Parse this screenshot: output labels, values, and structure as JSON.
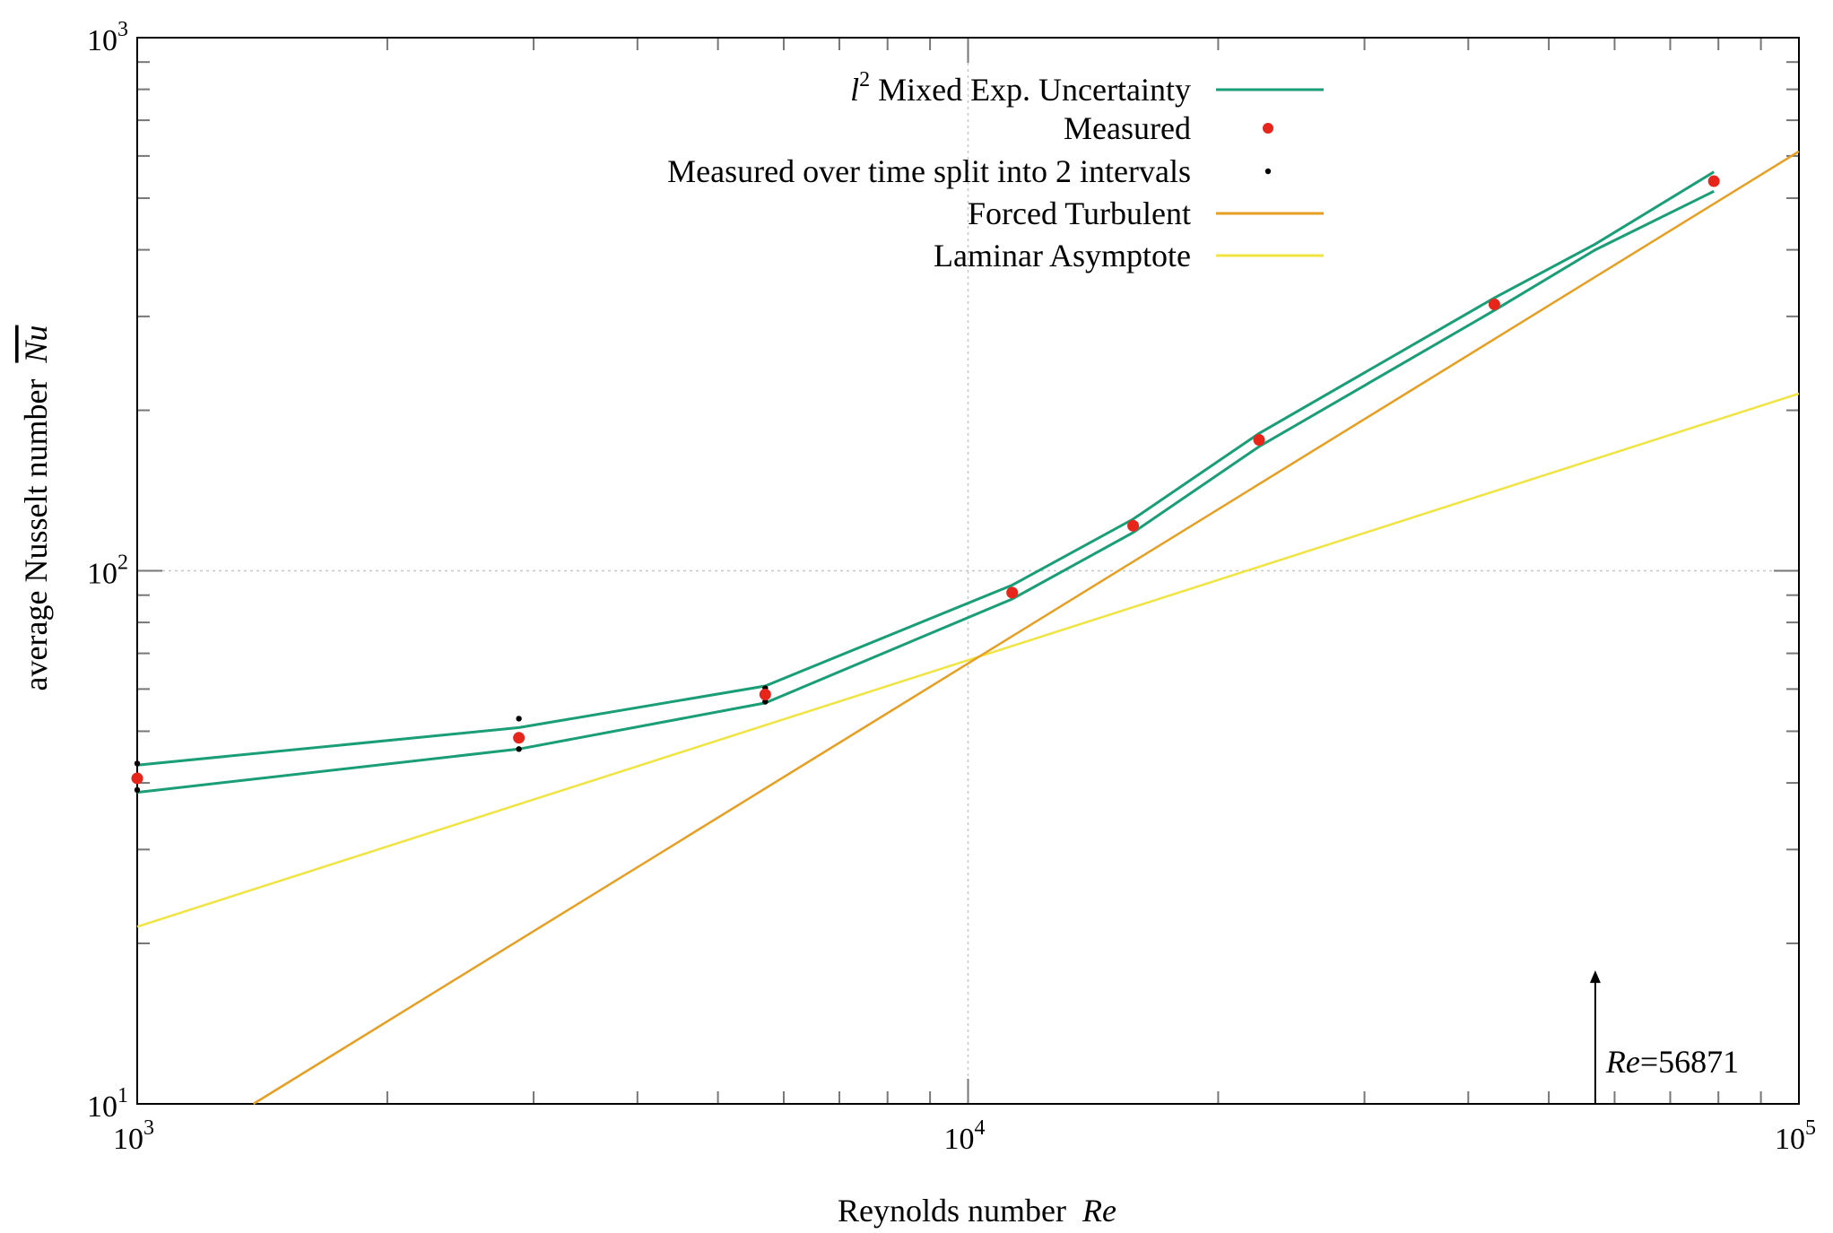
{
  "chart_data": {
    "type": "line",
    "xlabel": "Reynolds number",
    "xlabel_symbol": "Re",
    "ylabel": "average Nusselt number",
    "ylabel_symbol": "Nu",
    "xscale": "log",
    "yscale": "log",
    "xlim": [
      1000,
      100000
    ],
    "ylim": [
      10,
      1000
    ],
    "grid": "major only at 10^4 and 10^2 (dotted)",
    "legend_position": "top-center",
    "x_ticks": [
      {
        "value": 1000,
        "base": "10",
        "exp": "3"
      },
      {
        "value": 10000,
        "base": "10",
        "exp": "4"
      },
      {
        "value": 100000,
        "base": "10",
        "exp": "5"
      }
    ],
    "y_ticks": [
      {
        "value": 10,
        "base": "10",
        "exp": "1"
      },
      {
        "value": 100,
        "base": "10",
        "exp": "2"
      },
      {
        "value": 1000,
        "base": "10",
        "exp": "3"
      }
    ],
    "series": [
      {
        "name": "l² Mixed Exp. Uncertainty",
        "legend_prefix": "l",
        "legend_sup": "2",
        "legend_text": " Mixed Exp. Uncertainty",
        "kind": "band",
        "color": "#1a9e77",
        "upper": [
          [
            1000,
            43.2
          ],
          [
            2880,
            50.8
          ],
          [
            5700,
            60.8
          ],
          [
            11300,
            94
          ],
          [
            15800,
            125
          ],
          [
            22400,
            181
          ],
          [
            43000,
            325
          ],
          [
            56871,
            410
          ],
          [
            79000,
            560
          ]
        ],
        "lower": [
          [
            1000,
            38.4
          ],
          [
            2880,
            46.3
          ],
          [
            5700,
            56.5
          ],
          [
            11300,
            88.5
          ],
          [
            15800,
            118
          ],
          [
            22400,
            171
          ],
          [
            43000,
            308
          ],
          [
            56871,
            400
          ],
          [
            79000,
            515
          ]
        ]
      },
      {
        "name": "Measured",
        "kind": "points",
        "color": "#e8251b",
        "points": [
          [
            1000,
            40.8
          ],
          [
            2880,
            48.6
          ],
          [
            5700,
            58.6
          ],
          [
            11300,
            91
          ],
          [
            15800,
            121.5
          ],
          [
            22400,
            176
          ],
          [
            43000,
            316
          ],
          [
            79000,
            538
          ]
        ]
      },
      {
        "name": "Measured over time split into 2 intervals",
        "kind": "points",
        "color": "#000000",
        "points": [
          [
            1000,
            43.5
          ],
          [
            1000,
            38.8
          ],
          [
            2880,
            52.8
          ],
          [
            2880,
            46.3
          ],
          [
            5700,
            60.2
          ],
          [
            5700,
            56.8
          ],
          [
            11300,
            91.8
          ],
          [
            11300,
            90.2
          ],
          [
            15800,
            122.5
          ],
          [
            15800,
            120.7
          ],
          [
            22400,
            177.5
          ],
          [
            22400,
            174.8
          ],
          [
            43000,
            318.5
          ],
          [
            43000,
            313.8
          ],
          [
            79000,
            542
          ],
          [
            79000,
            534
          ]
        ]
      },
      {
        "name": "Forced Turbulent",
        "kind": "line",
        "color": "#e69f22",
        "points": [
          [
            1380,
            10
          ],
          [
            100000,
            612
          ]
        ]
      },
      {
        "name": "Laminar Asymptote",
        "kind": "line",
        "color": "#f0e442",
        "points": [
          [
            1000,
            21.5
          ],
          [
            100000,
            215
          ]
        ]
      }
    ],
    "annotation": {
      "text_italic": "Re",
      "text_rest": "=56871",
      "x": 56871,
      "arrow_from_y": 10,
      "arrow_to_y": 17.8
    }
  }
}
